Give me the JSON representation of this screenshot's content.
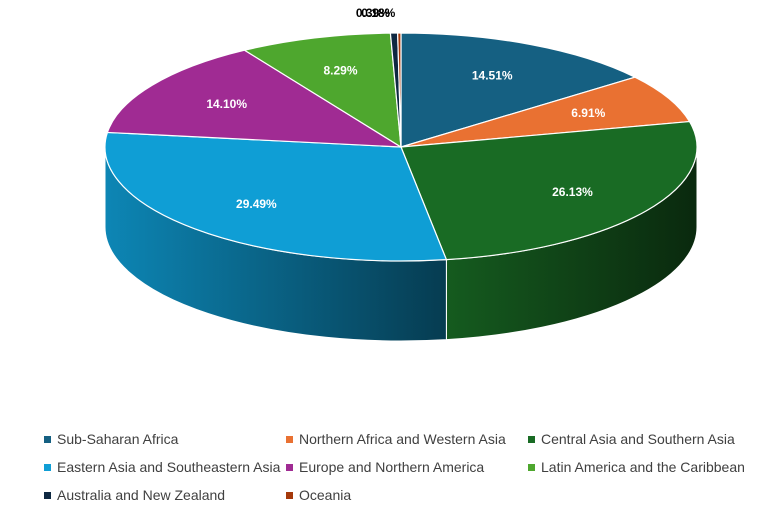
{
  "chart_data": {
    "type": "pie",
    "title": "",
    "categories": [
      "Sub-Saharan Africa",
      "Northern Africa and Western Asia",
      "Central Asia and Southern Asia",
      "Eastern Asia and Southeastern Asia",
      "Europe and Northern America",
      "Latin America and the Caribbean",
      "Australia and New Zealand",
      "Oceania"
    ],
    "values": [
      14.51,
      6.91,
      26.13,
      29.49,
      14.1,
      8.29,
      0.39,
      0.18
    ],
    "labels": [
      "14.51%",
      "6.91%",
      "26.13%",
      "29.49%",
      "14.10%",
      "8.29%",
      "0.39%",
      "0.18%"
    ],
    "colors": [
      "#156082",
      "#E97132",
      "#196B24",
      "#0F9ED5",
      "#A02B93",
      "#4EA72E",
      "#0E2841",
      "#A5390B"
    ],
    "label_colors": [
      "#ffffff",
      "#ffffff",
      "#ffffff",
      "#ffffff",
      "#ffffff",
      "#ffffff",
      "#000000",
      "#000000"
    ],
    "style": "3d",
    "legend_position": "bottom"
  }
}
